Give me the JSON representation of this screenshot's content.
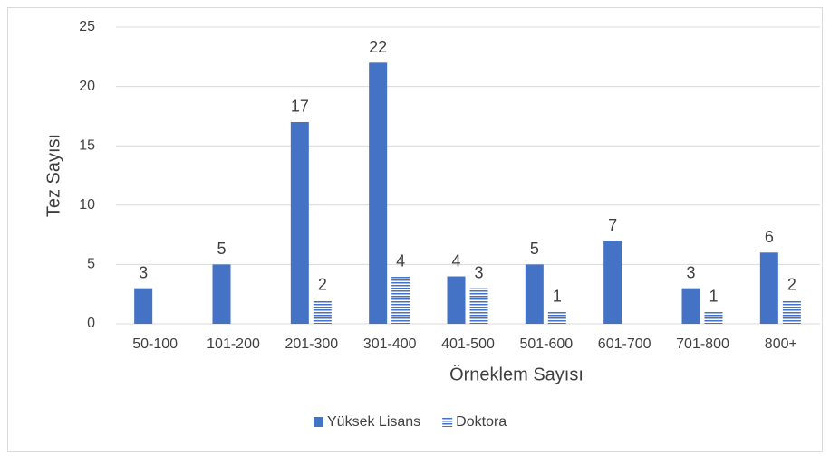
{
  "chart_data": {
    "type": "bar",
    "categories": [
      "50-100",
      "101-200",
      "201-300",
      "301-400",
      "401-500",
      "501-600",
      "601-700",
      "701-800",
      "800+"
    ],
    "series": [
      {
        "name": "Yüksek Lisans",
        "color": "#4472c4",
        "values": [
          3,
          5,
          17,
          22,
          4,
          5,
          7,
          3,
          6
        ]
      },
      {
        "name": "Doktora",
        "color": "#4472c4",
        "pattern": "horizontal-lines",
        "values": [
          null,
          null,
          2,
          4,
          3,
          1,
          null,
          1,
          2
        ]
      }
    ],
    "x_label": "Örneklem Sayısı",
    "y_label": "Tez Sayısı",
    "ylim": [
      0,
      25
    ],
    "yticks": [
      0,
      5,
      10,
      15,
      20,
      25
    ],
    "grid": true,
    "legend": "bottom"
  }
}
